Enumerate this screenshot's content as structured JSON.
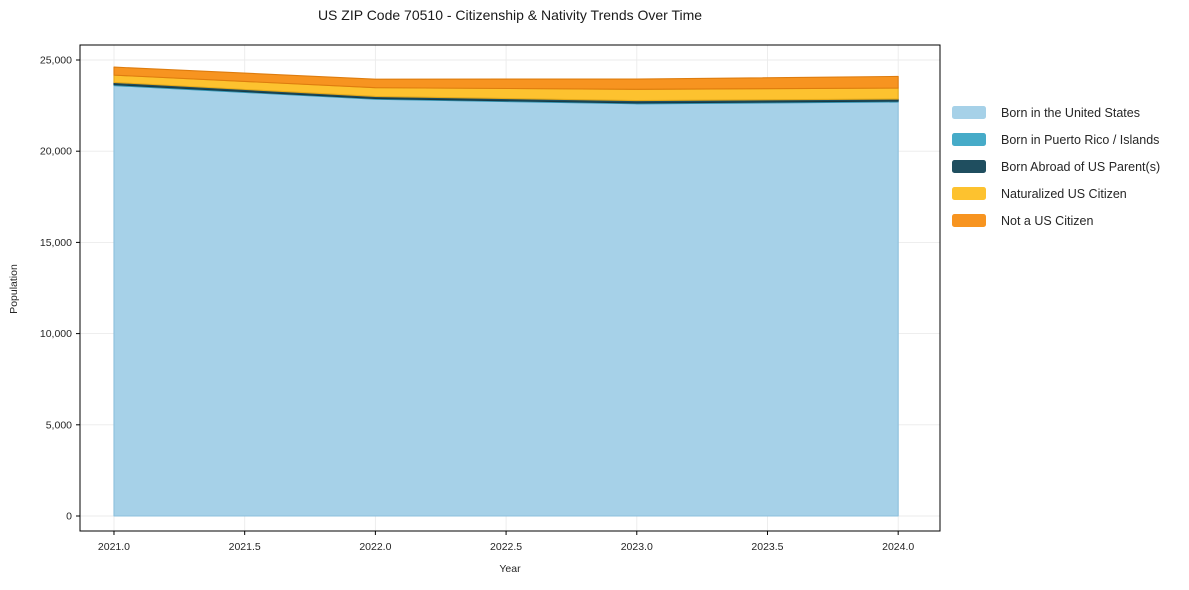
{
  "chart_data": {
    "type": "area",
    "stacked": true,
    "title": "US ZIP Code 70510 - Citizenship & Nativity Trends Over Time",
    "xlabel": "Year",
    "ylabel": "Population",
    "x": [
      2021,
      2022,
      2023,
      2024
    ],
    "series": [
      {
        "name": "Born in the United States",
        "color": "#A6D1E8",
        "edge": "#8CC0DC",
        "values": [
          23600,
          22850,
          22600,
          22700
        ]
      },
      {
        "name": "Born in Puerto Rico / Islands",
        "color": "#46ABC8",
        "edge": "#3193B1",
        "values": [
          50,
          40,
          45,
          50
        ]
      },
      {
        "name": "Born Abroad of US Parent(s)",
        "color": "#1F4E5F",
        "edge": "#163945",
        "values": [
          120,
          110,
          130,
          110
        ]
      },
      {
        "name": "Naturalized US Citizen",
        "color": "#FDC22F",
        "edge": "#E3A81A",
        "values": [
          400,
          480,
          620,
          600
        ]
      },
      {
        "name": "Not a US Citizen",
        "color": "#F79420",
        "edge": "#DE7C0E",
        "values": [
          440,
          470,
          560,
          640
        ]
      }
    ],
    "xticks": [
      2021.0,
      2021.5,
      2022.0,
      2022.5,
      2023.0,
      2023.5,
      2024.0
    ],
    "xtick_labels": [
      "2021.0",
      "2021.5",
      "2022.0",
      "2022.5",
      "2023.0",
      "2023.5",
      "2024.0"
    ],
    "yticks": [
      0,
      5000,
      10000,
      15000,
      20000,
      25000
    ],
    "ytick_labels": [
      "0",
      "5,000",
      "10,000",
      "15,000",
      "20,000",
      "25,000"
    ],
    "xlim": [
      2020.87,
      2024.16
    ],
    "ylim": [
      -822,
      25822
    ],
    "grid": true,
    "grid_color": "#EBEBEB",
    "spine_color": "#000000",
    "tick_label_color": "#262626",
    "legend_position": "outside-right"
  }
}
